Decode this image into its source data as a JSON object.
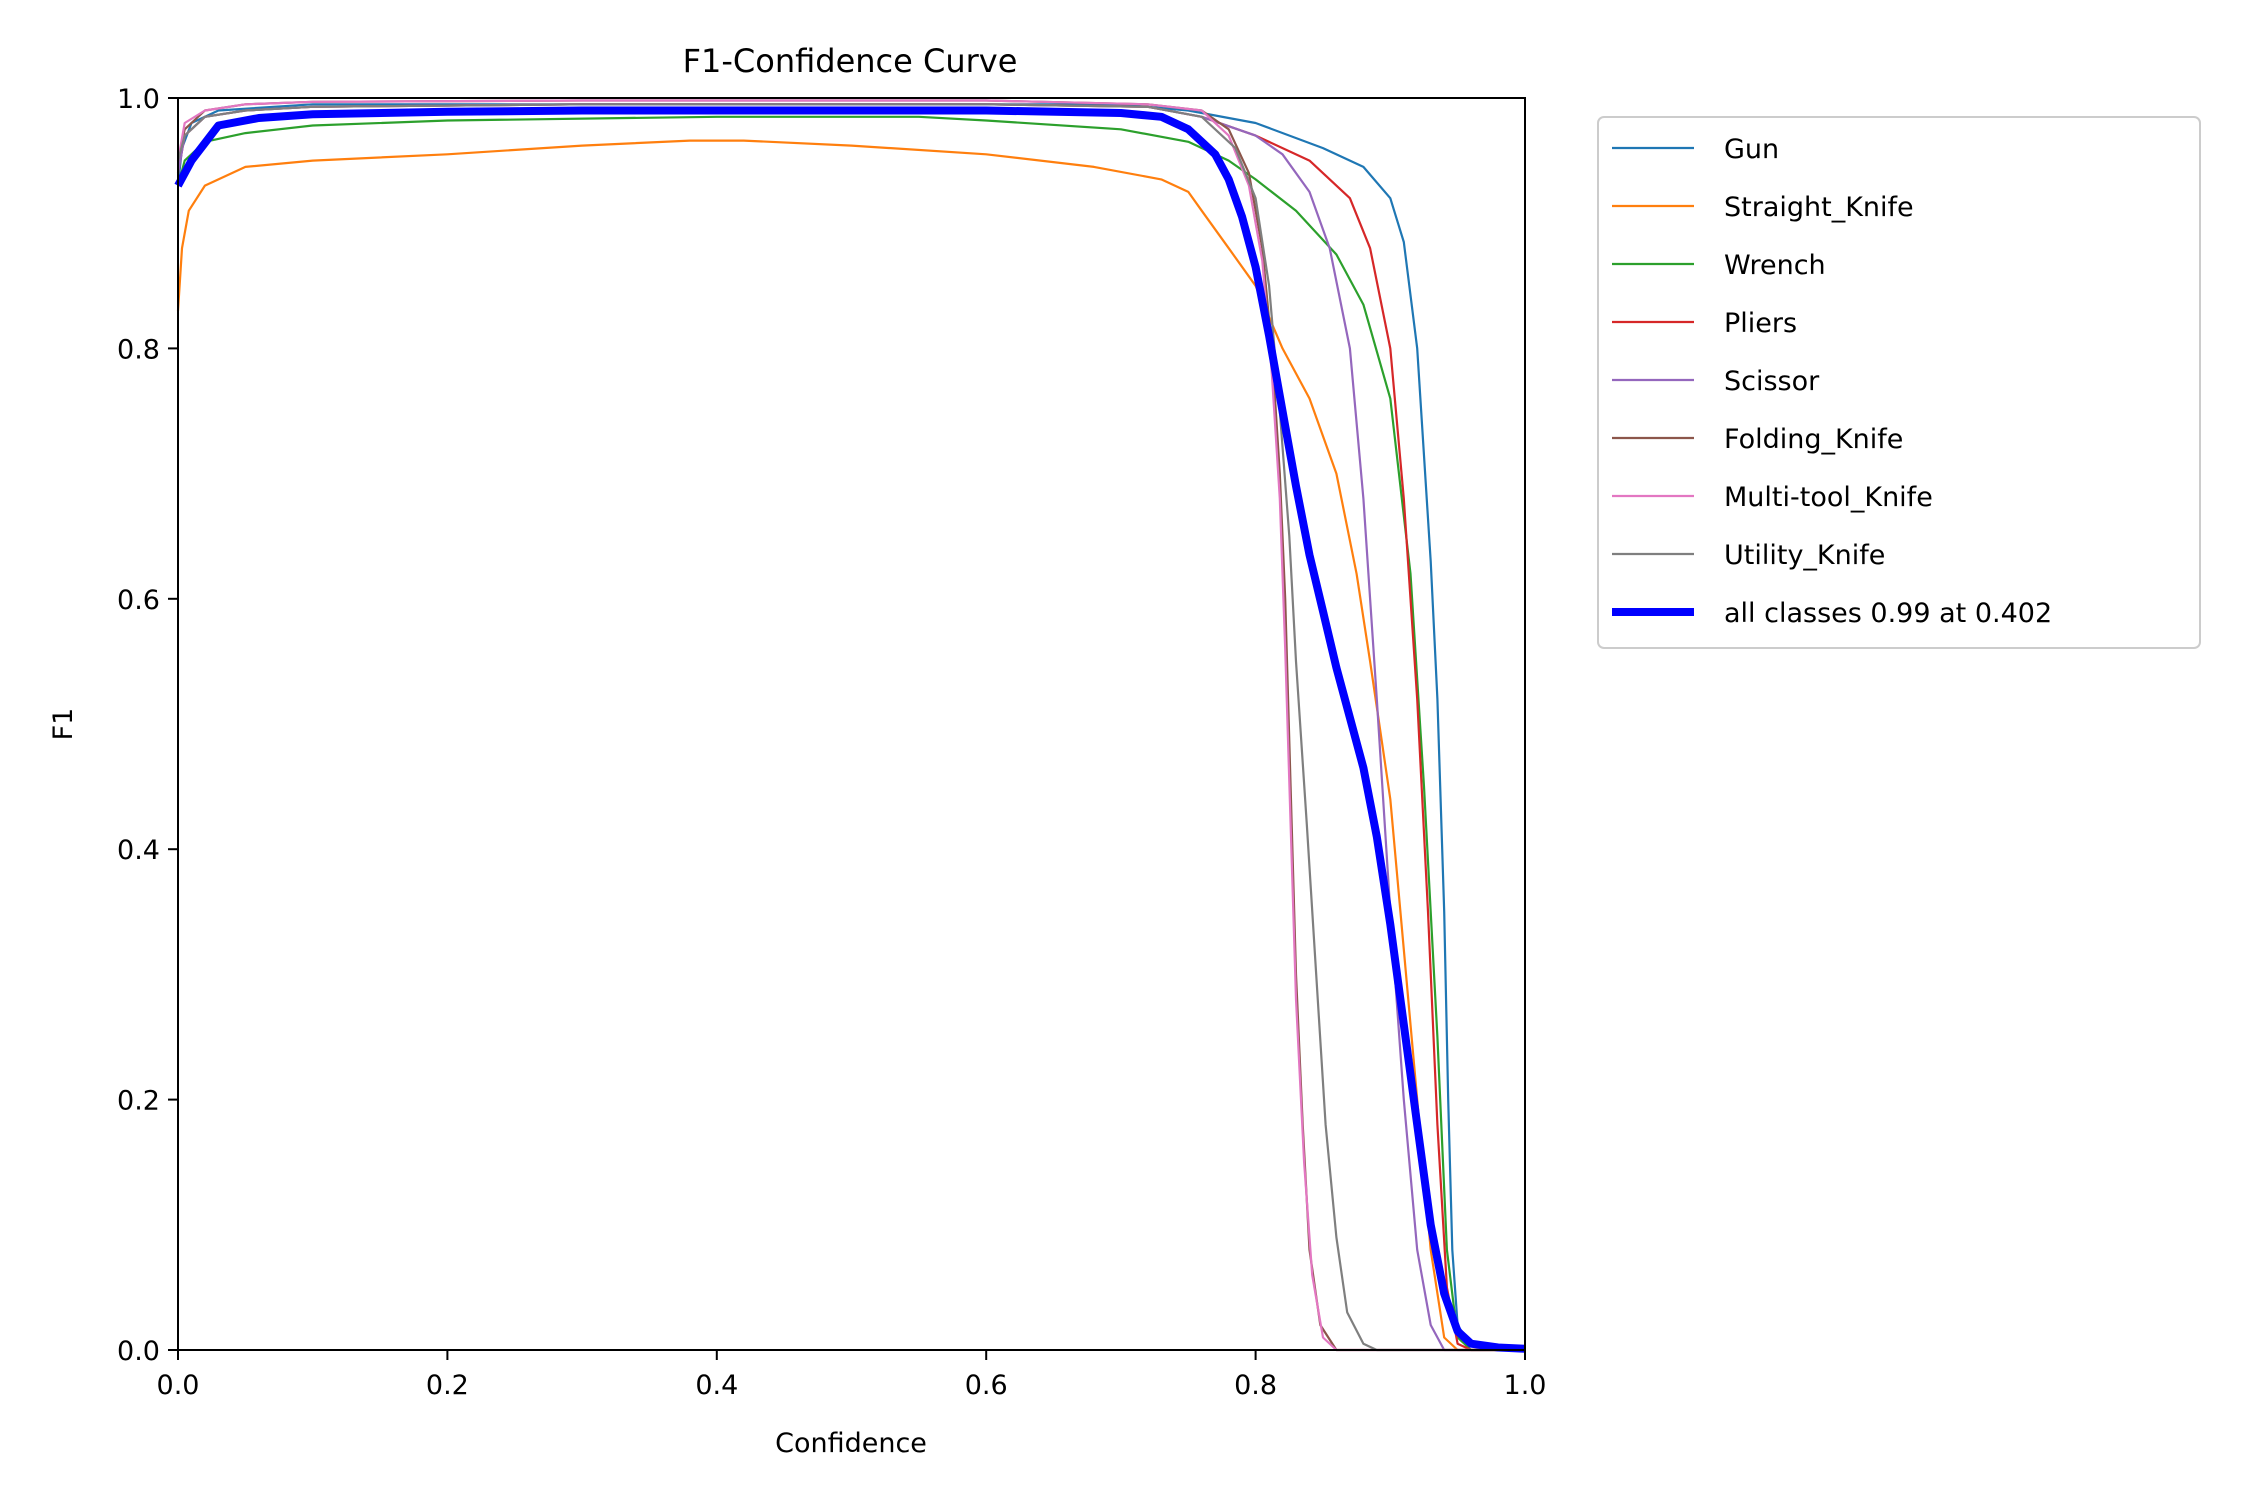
{
  "chart_data": {
    "type": "line",
    "title": "F1-Confidence Curve",
    "xlabel": "Confidence",
    "ylabel": "F1",
    "xlim": [
      0,
      1
    ],
    "ylim": [
      0,
      1
    ],
    "xticks": [
      "0.0",
      "0.2",
      "0.4",
      "0.6",
      "0.8",
      "1.0"
    ],
    "yticks": [
      "0.0",
      "0.2",
      "0.4",
      "0.6",
      "0.8",
      "1.0"
    ],
    "grid": false,
    "legend_position": "outside-upper-right",
    "series": [
      {
        "name": "Gun",
        "color": "#1f77b4",
        "width": "thin",
        "points": [
          [
            0,
            0.93
          ],
          [
            0.003,
            0.96
          ],
          [
            0.01,
            0.98
          ],
          [
            0.03,
            0.99
          ],
          [
            0.1,
            0.995
          ],
          [
            0.3,
            0.995
          ],
          [
            0.5,
            0.995
          ],
          [
            0.7,
            0.995
          ],
          [
            0.75,
            0.99
          ],
          [
            0.8,
            0.98
          ],
          [
            0.85,
            0.96
          ],
          [
            0.88,
            0.945
          ],
          [
            0.9,
            0.92
          ],
          [
            0.91,
            0.885
          ],
          [
            0.92,
            0.8
          ],
          [
            0.93,
            0.63
          ],
          [
            0.935,
            0.52
          ],
          [
            0.94,
            0.35
          ],
          [
            0.943,
            0.2
          ],
          [
            0.946,
            0.08
          ],
          [
            0.95,
            0.02
          ],
          [
            0.96,
            0.003
          ],
          [
            1.0,
            0.0
          ]
        ]
      },
      {
        "name": "Straight_Knife",
        "color": "#ff7f0e",
        "width": "thin",
        "points": [
          [
            0,
            0.83
          ],
          [
            0.003,
            0.88
          ],
          [
            0.008,
            0.91
          ],
          [
            0.02,
            0.93
          ],
          [
            0.05,
            0.945
          ],
          [
            0.1,
            0.95
          ],
          [
            0.2,
            0.955
          ],
          [
            0.3,
            0.962
          ],
          [
            0.38,
            0.966
          ],
          [
            0.42,
            0.966
          ],
          [
            0.5,
            0.962
          ],
          [
            0.6,
            0.955
          ],
          [
            0.68,
            0.945
          ],
          [
            0.73,
            0.935
          ],
          [
            0.75,
            0.925
          ],
          [
            0.76,
            0.91
          ],
          [
            0.78,
            0.88
          ],
          [
            0.8,
            0.85
          ],
          [
            0.82,
            0.8
          ],
          [
            0.84,
            0.76
          ],
          [
            0.86,
            0.7
          ],
          [
            0.875,
            0.62
          ],
          [
            0.885,
            0.55
          ],
          [
            0.9,
            0.44
          ],
          [
            0.91,
            0.32
          ],
          [
            0.92,
            0.2
          ],
          [
            0.93,
            0.08
          ],
          [
            0.94,
            0.01
          ],
          [
            0.95,
            0.0
          ],
          [
            1.0,
            0.0
          ]
        ]
      },
      {
        "name": "Wrench",
        "color": "#2ca02c",
        "width": "thin",
        "points": [
          [
            0,
            0.93
          ],
          [
            0.005,
            0.95
          ],
          [
            0.02,
            0.965
          ],
          [
            0.05,
            0.972
          ],
          [
            0.1,
            0.978
          ],
          [
            0.2,
            0.982
          ],
          [
            0.4,
            0.985
          ],
          [
            0.55,
            0.985
          ],
          [
            0.6,
            0.982
          ],
          [
            0.7,
            0.975
          ],
          [
            0.75,
            0.965
          ],
          [
            0.78,
            0.95
          ],
          [
            0.8,
            0.935
          ],
          [
            0.83,
            0.91
          ],
          [
            0.86,
            0.875
          ],
          [
            0.88,
            0.835
          ],
          [
            0.9,
            0.76
          ],
          [
            0.915,
            0.62
          ],
          [
            0.925,
            0.45
          ],
          [
            0.935,
            0.25
          ],
          [
            0.942,
            0.08
          ],
          [
            0.95,
            0.01
          ],
          [
            0.96,
            0.0
          ],
          [
            1.0,
            0.0
          ]
        ]
      },
      {
        "name": "Pliers",
        "color": "#d62728",
        "width": "thin",
        "points": [
          [
            0,
            0.94
          ],
          [
            0.005,
            0.97
          ],
          [
            0.02,
            0.985
          ],
          [
            0.05,
            0.99
          ],
          [
            0.1,
            0.993
          ],
          [
            0.3,
            0.995
          ],
          [
            0.6,
            0.995
          ],
          [
            0.72,
            0.993
          ],
          [
            0.76,
            0.985
          ],
          [
            0.8,
            0.97
          ],
          [
            0.84,
            0.95
          ],
          [
            0.87,
            0.92
          ],
          [
            0.885,
            0.88
          ],
          [
            0.9,
            0.8
          ],
          [
            0.91,
            0.68
          ],
          [
            0.92,
            0.52
          ],
          [
            0.928,
            0.35
          ],
          [
            0.935,
            0.18
          ],
          [
            0.942,
            0.05
          ],
          [
            0.95,
            0.005
          ],
          [
            0.96,
            0.0
          ],
          [
            1.0,
            0.0
          ]
        ]
      },
      {
        "name": "Scissor",
        "color": "#9467bd",
        "width": "thin",
        "points": [
          [
            0,
            0.94
          ],
          [
            0.005,
            0.97
          ],
          [
            0.02,
            0.985
          ],
          [
            0.05,
            0.99
          ],
          [
            0.1,
            0.993
          ],
          [
            0.3,
            0.995
          ],
          [
            0.6,
            0.995
          ],
          [
            0.72,
            0.993
          ],
          [
            0.76,
            0.985
          ],
          [
            0.8,
            0.97
          ],
          [
            0.82,
            0.955
          ],
          [
            0.84,
            0.925
          ],
          [
            0.855,
            0.88
          ],
          [
            0.87,
            0.8
          ],
          [
            0.88,
            0.68
          ],
          [
            0.89,
            0.52
          ],
          [
            0.9,
            0.35
          ],
          [
            0.91,
            0.2
          ],
          [
            0.92,
            0.08
          ],
          [
            0.93,
            0.02
          ],
          [
            0.94,
            0.0
          ],
          [
            1.0,
            0.0
          ]
        ]
      },
      {
        "name": "Folding_Knife",
        "color": "#8c564b",
        "width": "thin",
        "points": [
          [
            0,
            0.95
          ],
          [
            0.005,
            0.975
          ],
          [
            0.02,
            0.99
          ],
          [
            0.05,
            0.995
          ],
          [
            0.1,
            0.997
          ],
          [
            0.3,
            0.998
          ],
          [
            0.6,
            0.998
          ],
          [
            0.72,
            0.995
          ],
          [
            0.76,
            0.99
          ],
          [
            0.78,
            0.975
          ],
          [
            0.795,
            0.94
          ],
          [
            0.805,
            0.88
          ],
          [
            0.812,
            0.8
          ],
          [
            0.818,
            0.7
          ],
          [
            0.822,
            0.6
          ],
          [
            0.826,
            0.45
          ],
          [
            0.83,
            0.3
          ],
          [
            0.835,
            0.18
          ],
          [
            0.84,
            0.08
          ],
          [
            0.848,
            0.02
          ],
          [
            0.86,
            0.0
          ],
          [
            1.0,
            0.0
          ]
        ]
      },
      {
        "name": "Multi-tool_Knife",
        "color": "#e377c2",
        "width": "thin",
        "points": [
          [
            0,
            0.95
          ],
          [
            0.005,
            0.98
          ],
          [
            0.02,
            0.99
          ],
          [
            0.05,
            0.995
          ],
          [
            0.1,
            0.997
          ],
          [
            0.3,
            0.998
          ],
          [
            0.6,
            0.998
          ],
          [
            0.72,
            0.995
          ],
          [
            0.76,
            0.99
          ],
          [
            0.78,
            0.97
          ],
          [
            0.795,
            0.93
          ],
          [
            0.805,
            0.87
          ],
          [
            0.812,
            0.78
          ],
          [
            0.818,
            0.68
          ],
          [
            0.822,
            0.56
          ],
          [
            0.826,
            0.42
          ],
          [
            0.83,
            0.28
          ],
          [
            0.836,
            0.15
          ],
          [
            0.842,
            0.06
          ],
          [
            0.85,
            0.01
          ],
          [
            0.86,
            0.0
          ],
          [
            1.0,
            0.0
          ]
        ]
      },
      {
        "name": "Utility_Knife",
        "color": "#7f7f7f",
        "width": "thin",
        "points": [
          [
            0,
            0.95
          ],
          [
            0.005,
            0.97
          ],
          [
            0.02,
            0.985
          ],
          [
            0.05,
            0.99
          ],
          [
            0.1,
            0.993
          ],
          [
            0.3,
            0.995
          ],
          [
            0.6,
            0.995
          ],
          [
            0.72,
            0.993
          ],
          [
            0.76,
            0.985
          ],
          [
            0.785,
            0.96
          ],
          [
            0.8,
            0.92
          ],
          [
            0.81,
            0.85
          ],
          [
            0.818,
            0.75
          ],
          [
            0.825,
            0.65
          ],
          [
            0.83,
            0.55
          ],
          [
            0.838,
            0.42
          ],
          [
            0.845,
            0.3
          ],
          [
            0.852,
            0.18
          ],
          [
            0.86,
            0.09
          ],
          [
            0.868,
            0.03
          ],
          [
            0.88,
            0.005
          ],
          [
            0.89,
            0.0
          ],
          [
            1.0,
            0.0
          ]
        ]
      },
      {
        "name": "all classes 0.99 at 0.402",
        "color": "#0000ff",
        "width": "thick",
        "points": [
          [
            0,
            0.93
          ],
          [
            0.01,
            0.95
          ],
          [
            0.03,
            0.978
          ],
          [
            0.06,
            0.984
          ],
          [
            0.1,
            0.987
          ],
          [
            0.2,
            0.989
          ],
          [
            0.3,
            0.99
          ],
          [
            0.402,
            0.99
          ],
          [
            0.5,
            0.99
          ],
          [
            0.6,
            0.99
          ],
          [
            0.7,
            0.988
          ],
          [
            0.73,
            0.985
          ],
          [
            0.75,
            0.975
          ],
          [
            0.77,
            0.955
          ],
          [
            0.78,
            0.935
          ],
          [
            0.79,
            0.905
          ],
          [
            0.8,
            0.865
          ],
          [
            0.81,
            0.81
          ],
          [
            0.82,
            0.75
          ],
          [
            0.83,
            0.69
          ],
          [
            0.84,
            0.635
          ],
          [
            0.85,
            0.59
          ],
          [
            0.86,
            0.545
          ],
          [
            0.87,
            0.505
          ],
          [
            0.88,
            0.465
          ],
          [
            0.89,
            0.41
          ],
          [
            0.9,
            0.34
          ],
          [
            0.91,
            0.26
          ],
          [
            0.92,
            0.18
          ],
          [
            0.93,
            0.1
          ],
          [
            0.94,
            0.045
          ],
          [
            0.95,
            0.015
          ],
          [
            0.96,
            0.005
          ],
          [
            0.98,
            0.002
          ],
          [
            1.0,
            0.001
          ]
        ]
      }
    ]
  }
}
